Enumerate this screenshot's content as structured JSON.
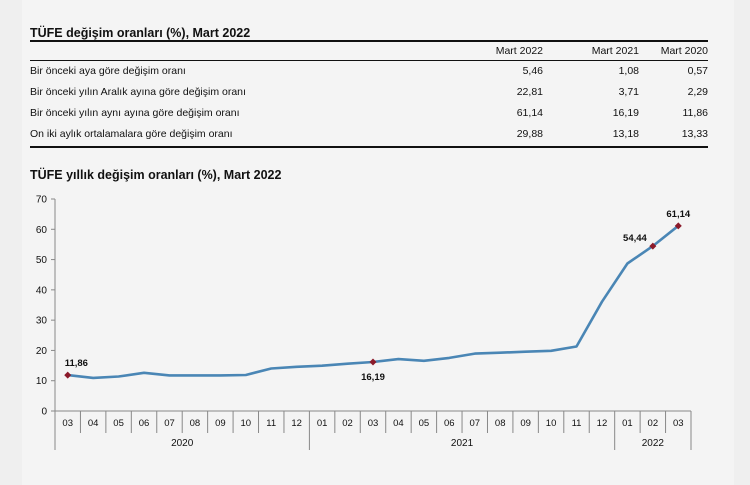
{
  "table": {
    "title": "TÜFE değişim oranları (%), Mart 2022",
    "headers": [
      "",
      "Mart 2022",
      "Mart 2021",
      "Mart 2020"
    ],
    "rows": [
      {
        "label": "Bir önceki aya göre değişim oranı",
        "values": [
          "5,46",
          "1,08",
          "0,57"
        ]
      },
      {
        "label": "Bir önceki yılın Aralık ayına göre değişim oranı",
        "values": [
          "22,81",
          "3,71",
          "2,29"
        ]
      },
      {
        "label": "Bir önceki yılın aynı ayına göre değişim oranı",
        "values": [
          "61,14",
          "16,19",
          "11,86"
        ]
      },
      {
        "label": "On iki aylık ortalamalara göre değişim oranı",
        "values": [
          "29,88",
          "13,18",
          "13,33"
        ]
      }
    ]
  },
  "chart_data": {
    "type": "line",
    "title": "TÜFE yıllık değişim oranları (%), Mart 2022",
    "categories": [
      "03",
      "04",
      "05",
      "06",
      "07",
      "08",
      "09",
      "10",
      "11",
      "12",
      "01",
      "02",
      "03",
      "04",
      "05",
      "06",
      "07",
      "08",
      "09",
      "10",
      "11",
      "12",
      "01",
      "02",
      "03"
    ],
    "years": [
      {
        "label": "2020",
        "from": 0,
        "to": 9
      },
      {
        "label": "2021",
        "from": 10,
        "to": 21
      },
      {
        "label": "2022",
        "from": 22,
        "to": 24
      }
    ],
    "values": [
      11.86,
      10.94,
      11.39,
      12.62,
      11.76,
      11.77,
      11.75,
      11.89,
      14.03,
      14.6,
      14.97,
      15.61,
      16.19,
      17.14,
      16.59,
      17.53,
      18.95,
      19.25,
      19.58,
      19.89,
      21.31,
      36.08,
      48.69,
      54.44,
      61.14
    ],
    "highlight_labels": [
      {
        "index": 0,
        "text": "11,86",
        "pos": "above"
      },
      {
        "index": 12,
        "text": "16,19",
        "pos": "below"
      },
      {
        "index": 23,
        "text": "54,44",
        "pos": "left"
      },
      {
        "index": 24,
        "text": "61,14",
        "pos": "above"
      }
    ],
    "yticks": [
      "0",
      "10",
      "20",
      "30",
      "40",
      "50",
      "60",
      "70"
    ],
    "ylim": [
      0,
      70
    ],
    "grid": false,
    "colors": {
      "line": "#4a86b5",
      "marker": "#8b1a2a",
      "axis": "#888888"
    }
  }
}
